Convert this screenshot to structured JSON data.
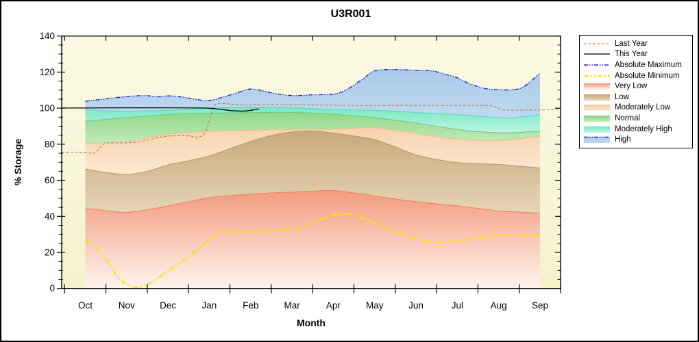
{
  "chart_data": {
    "type": "area",
    "title": "U3R001",
    "xlabel": "Month",
    "ylabel": "% Storage",
    "x_labels": [
      "Oct",
      "Nov",
      "Dec",
      "Jan",
      "Feb",
      "Mar",
      "Apr",
      "May",
      "Jun",
      "Jul",
      "Aug",
      "Sep"
    ],
    "ylim": [
      0,
      140
    ],
    "y_tick_step": 20,
    "y_minor_step": 5,
    "grid": false,
    "legend_position": "right",
    "plot_bg_top": "#FAFAE4",
    "plot_bg_bottom": "#F5F2CC",
    "boundaries": {
      "zero": [
        [
          0,
          0
        ],
        [
          11,
          0
        ]
      ],
      "very_low_top": [
        [
          0,
          44.4
        ],
        [
          0.5,
          43.1
        ],
        [
          1,
          42.2
        ],
        [
          1.5,
          43.6
        ],
        [
          2,
          45.8
        ],
        [
          2.5,
          48.1
        ],
        [
          3,
          50.3
        ],
        [
          3.5,
          51.5
        ],
        [
          4,
          52.3
        ],
        [
          4.5,
          53.0
        ],
        [
          5,
          53.4
        ],
        [
          5.5,
          54.0
        ],
        [
          6,
          54.3
        ],
        [
          6.5,
          53.0
        ],
        [
          7,
          51.3
        ],
        [
          7.5,
          49.6
        ],
        [
          8,
          48.1
        ],
        [
          8.5,
          46.9
        ],
        [
          9,
          45.8
        ],
        [
          9.5,
          44.4
        ],
        [
          10,
          43.0
        ],
        [
          10.5,
          42.3
        ],
        [
          11,
          41.8
        ]
      ],
      "low_top": [
        [
          0,
          66.3
        ],
        [
          0.5,
          64.3
        ],
        [
          1,
          63.3
        ],
        [
          1.5,
          65.0
        ],
        [
          2,
          68.5
        ],
        [
          2.5,
          70.8
        ],
        [
          3,
          73.5
        ],
        [
          3.5,
          77.5
        ],
        [
          4,
          81.5
        ],
        [
          4.5,
          84.8
        ],
        [
          5,
          86.8
        ],
        [
          5.5,
          87.3
        ],
        [
          6,
          86.2
        ],
        [
          6.5,
          84.6
        ],
        [
          7,
          82.5
        ],
        [
          7.5,
          78.5
        ],
        [
          8,
          74.0
        ],
        [
          8.5,
          71.5
        ],
        [
          9,
          69.8
        ],
        [
          9.5,
          69.2
        ],
        [
          10,
          68.8
        ],
        [
          10.5,
          67.8
        ],
        [
          11,
          66.8
        ]
      ],
      "mod_low_top": [
        [
          0,
          80.5
        ],
        [
          1,
          81.5
        ],
        [
          2,
          85.5
        ],
        [
          3,
          87.2
        ],
        [
          4,
          87.8
        ],
        [
          5,
          88.2
        ],
        [
          6,
          88.3
        ],
        [
          7,
          89.0
        ],
        [
          8,
          86.0
        ],
        [
          8.5,
          84.0
        ],
        [
          9,
          82.8
        ],
        [
          9.5,
          82.0
        ],
        [
          10,
          82.0
        ],
        [
          10.5,
          83.0
        ],
        [
          11,
          84.5
        ]
      ],
      "normal_top": [
        [
          0,
          92.8
        ],
        [
          1,
          94.7
        ],
        [
          2,
          96.5
        ],
        [
          3,
          97.2
        ],
        [
          4,
          97.5
        ],
        [
          5,
          97.6
        ],
        [
          6,
          96.6
        ],
        [
          7,
          94.7
        ],
        [
          8,
          91.7
        ],
        [
          9,
          88.2
        ],
        [
          9.5,
          87.0
        ],
        [
          10,
          86.3
        ],
        [
          10.5,
          86.5
        ],
        [
          11,
          87.3
        ]
      ],
      "mod_high_top": [
        [
          0,
          99.0
        ],
        [
          0.5,
          98.5
        ],
        [
          1,
          98.3
        ],
        [
          1.5,
          98.5
        ],
        [
          2,
          98.8
        ],
        [
          2.5,
          99.4
        ],
        [
          3,
          100.0
        ],
        [
          4,
          100.3
        ],
        [
          5,
          100.2
        ],
        [
          6,
          99.2
        ],
        [
          7,
          98.8
        ],
        [
          8,
          97.6
        ],
        [
          9,
          96.4
        ],
        [
          9.5,
          95.5
        ],
        [
          10,
          94.8
        ],
        [
          10.3,
          94.5
        ],
        [
          10.7,
          95.6
        ],
        [
          11,
          96.5
        ]
      ],
      "abs_max": [
        [
          0,
          103.8
        ],
        [
          0.5,
          105.2
        ],
        [
          0.9,
          106.2
        ],
        [
          1.4,
          107.0
        ],
        [
          1.75,
          106.3
        ],
        [
          2,
          106.8
        ],
        [
          2.3,
          106.3
        ],
        [
          2.6,
          105.2
        ],
        [
          3,
          104.3
        ],
        [
          3.5,
          107.3
        ],
        [
          3.9,
          110.2
        ],
        [
          4.1,
          110.5
        ],
        [
          4.5,
          108.5
        ],
        [
          5,
          107.0
        ],
        [
          5.5,
          107.4
        ],
        [
          6,
          107.8
        ],
        [
          6.3,
          110.0
        ],
        [
          6.7,
          116.0
        ],
        [
          7,
          120.7
        ],
        [
          7.4,
          121.4
        ],
        [
          7.8,
          121.2
        ],
        [
          8,
          121.0
        ],
        [
          8.4,
          120.6
        ],
        [
          8.8,
          118.2
        ],
        [
          9,
          116.8
        ],
        [
          9.3,
          113.5
        ],
        [
          9.7,
          110.8
        ],
        [
          10,
          110.3
        ],
        [
          10.3,
          110.2
        ],
        [
          10.6,
          111.8
        ],
        [
          11,
          119.6
        ]
      ]
    },
    "bands": [
      {
        "id": "very-low",
        "label": "Very Low",
        "lower": "zero",
        "upper": "very_low_top",
        "fill_top": "#F39B7D",
        "fill_bottom": "#FEF4EE",
        "edge": "#EF8263"
      },
      {
        "id": "low",
        "label": "Low",
        "lower": "very_low_top",
        "upper": "low_top",
        "fill_top": "#C9A87A",
        "fill_bottom": "#E6D5B8",
        "edge": "#BE9761"
      },
      {
        "id": "moderately-low",
        "label": "Moderately Low",
        "lower": "low_top",
        "upper": "mod_low_top",
        "fill_top": "#F7D3AE",
        "fill_bottom": "#FBE9D4",
        "edge": "#EABE92"
      },
      {
        "id": "normal",
        "label": "Normal",
        "lower": "mod_low_top",
        "upper": "normal_top",
        "fill_top": "#92D88A",
        "fill_bottom": "#C2EAB9",
        "edge": "#70C872"
      },
      {
        "id": "moderately-high",
        "label": "Moderately High",
        "lower": "normal_top",
        "upper": "mod_high_top",
        "fill_top": "#78E8C5",
        "fill_bottom": "#BDF4E3",
        "edge": "#57DBB3"
      },
      {
        "id": "high",
        "label": "High",
        "lower": "mod_high_top",
        "upper": "abs_max",
        "fill_top": "#A9CBE9",
        "fill_bottom": "#BFD9F0",
        "edge": "none"
      }
    ],
    "lines": [
      {
        "id": "absolute-minimum",
        "label": "Absolute Minimum",
        "color": "#FFE100",
        "width": 2.6,
        "dash": "7,3,2,3,2,3",
        "points": [
          [
            0,
            26.5
          ],
          [
            0.15,
            24.2
          ],
          [
            0.35,
            20.0
          ],
          [
            0.6,
            13.0
          ],
          [
            0.8,
            6.0
          ],
          [
            1.0,
            2.2
          ],
          [
            1.15,
            0.9
          ],
          [
            1.3,
            0.7
          ],
          [
            1.5,
            2.2
          ],
          [
            1.7,
            5.0
          ],
          [
            2.0,
            9.5
          ],
          [
            2.3,
            14.5
          ],
          [
            2.6,
            19.5
          ],
          [
            2.8,
            23.0
          ],
          [
            3.0,
            27.5
          ],
          [
            3.2,
            30.5
          ],
          [
            3.35,
            31.4
          ],
          [
            3.6,
            31.5
          ],
          [
            4.0,
            31.5
          ],
          [
            4.4,
            31.7
          ],
          [
            4.8,
            32.3
          ],
          [
            5.0,
            33.0
          ],
          [
            5.3,
            34.8
          ],
          [
            5.6,
            37.5
          ],
          [
            6.0,
            40.7
          ],
          [
            6.2,
            41.5
          ],
          [
            6.4,
            41.2
          ],
          [
            6.7,
            39.0
          ],
          [
            7.0,
            36.2
          ],
          [
            7.3,
            33.5
          ],
          [
            7.6,
            30.5
          ],
          [
            8.0,
            27.5
          ],
          [
            8.3,
            25.9
          ],
          [
            8.6,
            25.5
          ],
          [
            9.0,
            26.3
          ],
          [
            9.4,
            27.8
          ],
          [
            9.8,
            29.2
          ],
          [
            10.2,
            29.7
          ],
          [
            10.6,
            29.5
          ],
          [
            11.0,
            29.3
          ]
        ]
      },
      {
        "id": "last-year",
        "label": "Last Year",
        "color": "#BC7A3C",
        "width": 1.1,
        "dash": "4,2.5",
        "points": [
          [
            -0.57,
            75.5
          ],
          [
            -0.3,
            75.6
          ],
          [
            0,
            75.5
          ],
          [
            0.12,
            75.1
          ],
          [
            0.25,
            75.4
          ],
          [
            0.38,
            78.8
          ],
          [
            0.5,
            80.6
          ],
          [
            0.75,
            80.7
          ],
          [
            1,
            80.8
          ],
          [
            1.3,
            81.3
          ],
          [
            1.6,
            82.8
          ],
          [
            1.9,
            84.3
          ],
          [
            2.2,
            84.7
          ],
          [
            2.5,
            84.6
          ],
          [
            2.75,
            84.0
          ],
          [
            2.9,
            86.5
          ],
          [
            3.0,
            93.0
          ],
          [
            3.1,
            100.5
          ],
          [
            3.2,
            102.4
          ],
          [
            3.35,
            102.6
          ],
          [
            3.55,
            102.1
          ],
          [
            3.8,
            101.8
          ],
          [
            4.5,
            101.9
          ],
          [
            5.5,
            101.8
          ],
          [
            6.2,
            101.6
          ],
          [
            6.8,
            101.4
          ],
          [
            7.5,
            101.5
          ],
          [
            8.5,
            101.5
          ],
          [
            9.3,
            101.6
          ],
          [
            9.75,
            101.4
          ],
          [
            9.95,
            100.5
          ],
          [
            10.1,
            99.1
          ],
          [
            10.4,
            98.9
          ],
          [
            10.8,
            99.0
          ],
          [
            11.2,
            99.1
          ],
          [
            11.38,
            99.4
          ],
          [
            11.5,
            99.9
          ]
        ]
      },
      {
        "id": "absolute-maximum",
        "label": "Absolute Maximum",
        "color": "#2121CC",
        "width": 1.4,
        "dash": "6,2,1.5,2,1.5,2",
        "points_ref": "abs_max"
      },
      {
        "id": "this-year",
        "label": "This Year",
        "color": "#000000",
        "width": 1.3,
        "dash": "",
        "points": [
          [
            -0.57,
            100.1
          ],
          [
            0,
            100.1
          ],
          [
            1,
            100.2
          ],
          [
            2,
            100.2
          ],
          [
            2.8,
            100.1
          ],
          [
            3.05,
            99.9
          ],
          [
            3.25,
            99.4
          ],
          [
            3.5,
            98.7
          ],
          [
            3.7,
            98.4
          ],
          [
            3.85,
            98.4
          ],
          [
            4.0,
            98.8
          ],
          [
            4.12,
            99.3
          ],
          [
            4.2,
            99.6
          ]
        ]
      }
    ]
  },
  "legend": {
    "items": [
      {
        "id": "last-year",
        "label": "Last Year",
        "kind": "line",
        "color": "#BC7A3C",
        "dash": "4,2.5",
        "width": 1.1
      },
      {
        "id": "this-year",
        "label": "This Year",
        "kind": "line",
        "color": "#000000",
        "dash": "",
        "width": 1.3
      },
      {
        "id": "absolute-maximum",
        "label": "Absolute Maximum",
        "kind": "line",
        "color": "#2121CC",
        "dash": "6,2,1.5,2,1.5,2",
        "width": 1.4
      },
      {
        "id": "absolute-minimum",
        "label": "Absolute Minimum",
        "kind": "line",
        "color": "#FFE100",
        "dash": "7,3,2,3,2,3",
        "width": 2.6
      },
      {
        "id": "very-low",
        "label": "Very Low",
        "kind": "band",
        "top": "#F39B7D",
        "bottom": "#FEF4EE",
        "line": "#EF8263"
      },
      {
        "id": "low",
        "label": "Low",
        "kind": "band",
        "top": "#C9A87A",
        "bottom": "#E6D5B8",
        "line": "#BE9761"
      },
      {
        "id": "moderately-low",
        "label": "Moderately Low",
        "kind": "band",
        "top": "#F7D3AE",
        "bottom": "#FBE9D4",
        "line": "#EABE92"
      },
      {
        "id": "normal",
        "label": "Normal",
        "kind": "band",
        "top": "#92D88A",
        "bottom": "#C2EAB9",
        "line": "#70C872"
      },
      {
        "id": "moderately-high",
        "label": "Moderately High",
        "kind": "band",
        "top": "#78E8C5",
        "bottom": "#BDF4E3",
        "line": "#57DBB3"
      },
      {
        "id": "high",
        "label": "High",
        "kind": "band-line",
        "top": "#A9CBE9",
        "bottom": "#BFD9F0",
        "line": "#2121CC",
        "dash": "6,2,1.5,2,1.5,2"
      }
    ]
  }
}
